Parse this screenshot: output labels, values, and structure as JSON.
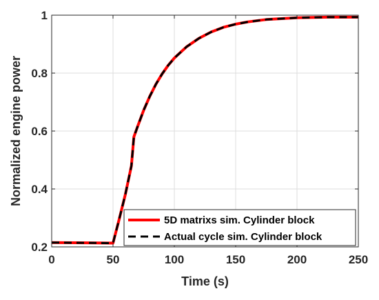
{
  "chart_data": {
    "type": "line",
    "title": "",
    "xlabel": "Time (s)",
    "ylabel": "Normalized engine power",
    "xlim": [
      0,
      250
    ],
    "ylim": [
      0.2,
      1
    ],
    "xticks": [
      0,
      50,
      100,
      150,
      200,
      250
    ],
    "yticks": [
      0.2,
      0.4,
      0.6,
      0.8,
      1
    ],
    "xtick_labels": [
      "0",
      "50",
      "100",
      "150",
      "200",
      "250"
    ],
    "ytick_labels": [
      "0.2",
      "0.4",
      "0.6",
      "0.8",
      "1"
    ],
    "grid": true,
    "legend_position": "bottom-right",
    "series": [
      {
        "name": "5D matrixs sim. Cylinder block",
        "color": "#ff0000",
        "style": "solid",
        "x": [
          0,
          50,
          55,
          60,
          65,
          67,
          70,
          75,
          80,
          85,
          90,
          95,
          100,
          110,
          120,
          130,
          140,
          150,
          160,
          175,
          200,
          225,
          250
        ],
        "y": [
          0.215,
          0.213,
          0.295,
          0.38,
          0.48,
          0.58,
          0.615,
          0.672,
          0.72,
          0.762,
          0.797,
          0.827,
          0.852,
          0.891,
          0.92,
          0.942,
          0.958,
          0.969,
          0.977,
          0.985,
          0.991,
          0.993,
          0.993
        ]
      },
      {
        "name": "Actual cycle sim. Cylinder block",
        "color": "#000000",
        "style": "dashed",
        "x": [
          0,
          50,
          55,
          60,
          65,
          67,
          70,
          75,
          80,
          85,
          90,
          95,
          100,
          110,
          120,
          130,
          140,
          150,
          160,
          175,
          200,
          225,
          250
        ],
        "y": [
          0.215,
          0.213,
          0.295,
          0.38,
          0.48,
          0.58,
          0.615,
          0.672,
          0.72,
          0.762,
          0.797,
          0.827,
          0.852,
          0.891,
          0.92,
          0.942,
          0.958,
          0.969,
          0.977,
          0.985,
          0.991,
          0.993,
          0.993
        ]
      }
    ]
  }
}
